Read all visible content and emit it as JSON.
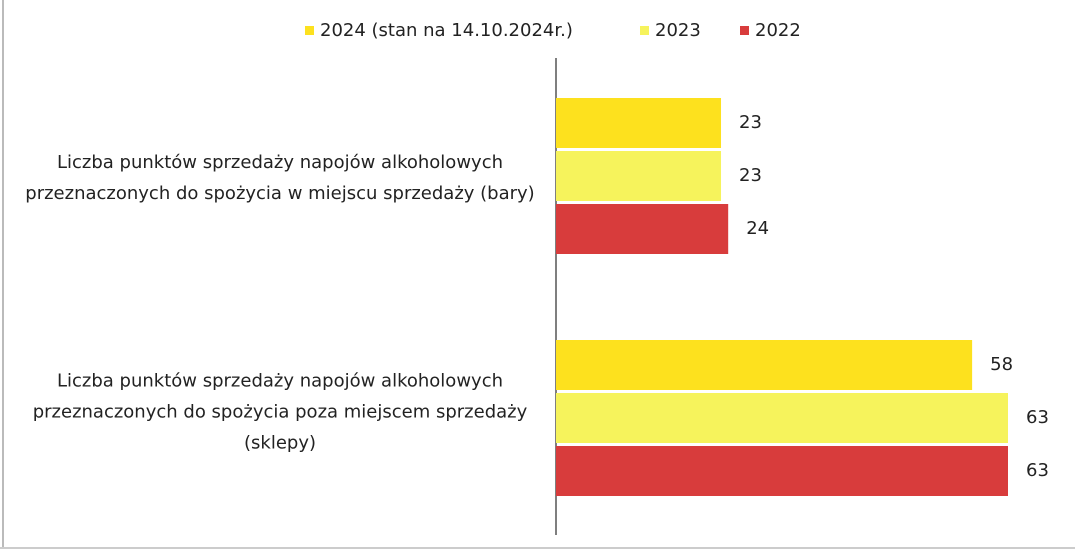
{
  "chart_data": {
    "type": "barh",
    "categories": [
      "Liczba punktów sprzedaży napojów alkoholowych przeznaczonych do spożycia w miejscu sprzedaży (bary)",
      "Liczba punktów sprzedaży napojów alkoholowych przeznaczonych do spożycia poza miejscem sprzedaży (sklepy)"
    ],
    "series": [
      {
        "name": "2024 (stan na 14.10.2024r.)",
        "color": "#fde11e",
        "values": [
          23,
          58
        ]
      },
      {
        "name": "2023",
        "color": "#f6f35c",
        "values": [
          23,
          63
        ]
      },
      {
        "name": "2022",
        "color": "#d83c3c",
        "values": [
          24,
          63
        ]
      }
    ],
    "legend": "top"
  }
}
